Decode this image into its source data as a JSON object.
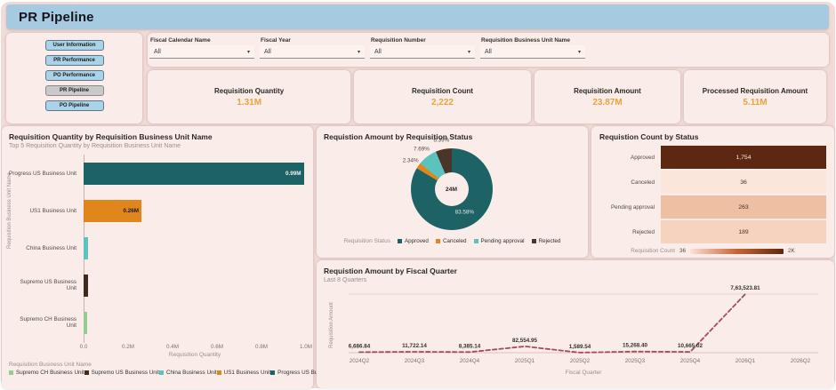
{
  "header": {
    "title": "PR Pipeline"
  },
  "sidebar": {
    "buttons": [
      {
        "label": "User Information",
        "active": false
      },
      {
        "label": "PR Performance",
        "active": false
      },
      {
        "label": "PO Performance",
        "active": false
      },
      {
        "label": "PR Pipeline",
        "active": true
      },
      {
        "label": "PO Pipeline",
        "active": false
      }
    ]
  },
  "filters": [
    {
      "label": "Fiscal Calendar Name",
      "value": "All"
    },
    {
      "label": "Fiscal Year",
      "value": "All"
    },
    {
      "label": "Requisition Number",
      "value": "All"
    },
    {
      "label": "Requisition Business Unit Name",
      "value": "All"
    }
  ],
  "kpis": [
    {
      "label": "Requisition Quantity",
      "value": "1.31M"
    },
    {
      "label": "Requisition Count",
      "value": "2,222"
    },
    {
      "label": "Requisition Amount",
      "value": "23.87M"
    },
    {
      "label": "Processed Requisition Amount",
      "value": "5.11M"
    }
  ],
  "colors": {
    "header_bg": "#A6CBE0",
    "page_bg": "#F2DAD6",
    "card_bg": "#FAEDE9",
    "kpi_value": "#E8A33C",
    "nav_button_bg": "#A9D3E8",
    "nav_button_active_bg": "#C9C9C9",
    "teal": "#1D6365",
    "orange": "#E0861C",
    "light_teal": "#5BC2BE",
    "dark_brown": "#3F2A1E",
    "light_green": "#95CC92",
    "line": "#A84A5C"
  },
  "chart_data": [
    {
      "type": "bar",
      "orientation": "horizontal",
      "title": "Requisition Quantity by Requisition Business Unit Name",
      "subtitle": "Top 5 Requisition Quantity by Requisition Business Unit Name",
      "categories": [
        "Progress US Business Unit",
        "US1 Business Unit",
        "China Business Unit",
        "Supremo US Business Unit",
        "Supremo CH Business Unit"
      ],
      "values_millions": [
        0.99,
        0.26,
        0.02,
        0.02,
        0.015
      ],
      "data_labels": [
        "0.99M",
        "0.26M",
        "",
        "",
        ""
      ],
      "data_label_colors": [
        "#f3efec",
        "#1f1c19",
        "",
        "",
        ""
      ],
      "bar_colors": [
        "#1D6365",
        "#E0861C",
        "#5BC2BE",
        "#3F2A1E",
        "#95CC92"
      ],
      "xlabel": "Requisition Quantity",
      "ylabel": "Requisition Business Unit Name",
      "x_ticks": [
        "0.0",
        "0.2M",
        "0.4M",
        "0.6M",
        "0.8M",
        "1.0M"
      ],
      "xlim_millions": [
        0,
        1.0
      ],
      "legend_title": "Requisition Business Unit Name",
      "legend": [
        {
          "label": "Supremo CH Business Unit",
          "color": "#95CC92"
        },
        {
          "label": "Supremo US Business Unit",
          "color": "#3F2A1E"
        },
        {
          "label": "China Business Unit",
          "color": "#5BC2BE"
        },
        {
          "label": "US1 Business Unit",
          "color": "#E0861C"
        },
        {
          "label": "Progress US Business Unit",
          "color": "#1D6365"
        }
      ]
    },
    {
      "type": "pie",
      "title": "Requistion Amount by Requisition Status",
      "center_label": "24M",
      "slices": [
        {
          "label": "Approved",
          "pct": 83.58,
          "pct_label": "83.58%",
          "color": "#1D6365"
        },
        {
          "label": "Canceled",
          "pct": 2.34,
          "pct_label": "2.34%",
          "color": "#E0861C"
        },
        {
          "label": "Pending approval",
          "pct": 7.69,
          "pct_label": "7.69%",
          "color": "#5BC2BE"
        },
        {
          "label": "Rejected",
          "pct": 6.39,
          "pct_label": "6.39%",
          "color": "#4A3528"
        }
      ],
      "legend_title": "Requisition Status"
    },
    {
      "type": "heatmap",
      "title": "Requistion Count by Status",
      "rows": [
        {
          "label": "Approved",
          "value": "1,754",
          "bg": "#5E2711",
          "text_color": "#f5ede8"
        },
        {
          "label": "Canceled",
          "value": "36",
          "bg": "#FAE6DB",
          "text_color": "#4a3328"
        },
        {
          "label": "Pending approval",
          "value": "263",
          "bg": "#EFBFA3",
          "text_color": "#4a3328"
        },
        {
          "label": "Rejected",
          "value": "189",
          "bg": "#F5D3BE",
          "text_color": "#4a3328"
        }
      ],
      "legend": {
        "label": "Requisition Count",
        "min": "36",
        "max": "2K",
        "gradient": [
          "#F9E3D5",
          "#C86434",
          "#5E2711"
        ]
      }
    },
    {
      "type": "line",
      "title": "Requistion Amount by Fiscal Quarter",
      "subtitle": "Last 8 Quarters",
      "x": [
        "2024Q2",
        "2024Q3",
        "2024Q4",
        "2025Q1",
        "2025Q2",
        "2025Q3",
        "2025Q4",
        "2026Q1"
      ],
      "x_ticks": [
        "2024Q2",
        "2024Q3",
        "2024Q4",
        "2025Q1",
        "2025Q2",
        "2025Q3",
        "2025Q4",
        "2026Q1",
        "2026Q2"
      ],
      "values": [
        6686.84,
        11722.14,
        8385.14,
        82554.95,
        1589.54,
        15268.4,
        10665.02,
        763523.81
      ],
      "data_labels": [
        "6,686.84",
        "11,722.14",
        "8,385.14",
        "82,554.95",
        "1,589.54",
        "15,268.40",
        "10,665.02",
        "7,63,523.81"
      ],
      "ylim": [
        0,
        763523.81
      ],
      "line_color": "#A84A5C",
      "line_style": "dashed",
      "xlabel": "Fiscal Quarter",
      "ylabel": "Requisition Amount"
    }
  ]
}
